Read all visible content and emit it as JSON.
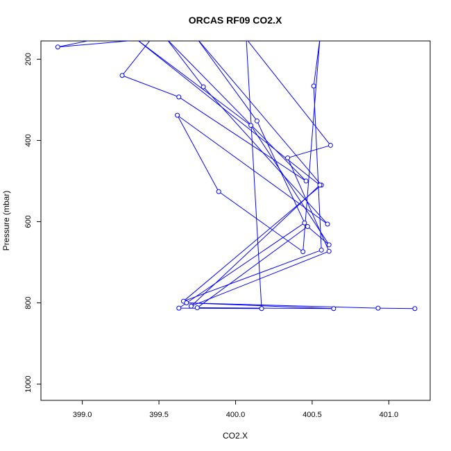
{
  "chart_data": {
    "type": "line",
    "title": "ORCAS RF09 CO2.X",
    "xlabel": "CO2.X",
    "ylabel": "Pressure (mbar)",
    "xlim": [
      398.73,
      401.27
    ],
    "ylim": [
      1040,
      155
    ],
    "y_reversed": true,
    "x_ticks": [
      "399.0",
      "399.5",
      "400.0",
      "400.5",
      "401.0"
    ],
    "y_ticks": [
      "200",
      "400",
      "600",
      "800",
      "1000"
    ],
    "series": [
      {
        "color": "#0000ff",
        "marker": "open-circle",
        "points": [
          [
            399.1,
            150
          ],
          [
            398.84,
            170
          ],
          [
            399.45,
            150
          ],
          [
            399.26,
            240
          ],
          [
            399.63,
            293
          ],
          [
            400.46,
            500
          ],
          [
            399.55,
            150
          ],
          [
            399.79,
            268
          ],
          [
            400.6,
            606
          ],
          [
            399.62,
            338
          ],
          [
            399.89,
            526
          ],
          [
            400.44,
            674
          ],
          [
            400.55,
            150
          ],
          [
            400.51,
            266
          ],
          [
            400.56,
            670
          ],
          [
            399.66,
            796
          ],
          [
            400.56,
            510
          ],
          [
            399.75,
            150
          ],
          [
            400.14,
            352
          ],
          [
            400.45,
            603
          ],
          [
            399.63,
            813
          ],
          [
            400.17,
            814
          ],
          [
            400.07,
            150
          ],
          [
            400.62,
            412
          ],
          [
            400.34,
            443
          ],
          [
            400.61,
            673
          ],
          [
            399.71,
            808
          ],
          [
            400.55,
            510
          ],
          [
            399.35,
            150
          ],
          [
            400.1,
            363
          ],
          [
            400.61,
            657
          ],
          [
            400.47,
            612
          ],
          [
            399.75,
            812
          ],
          [
            400.64,
            814
          ],
          [
            399.68,
            800
          ],
          [
            400.93,
            813
          ],
          [
            401.17,
            814
          ]
        ]
      }
    ]
  }
}
